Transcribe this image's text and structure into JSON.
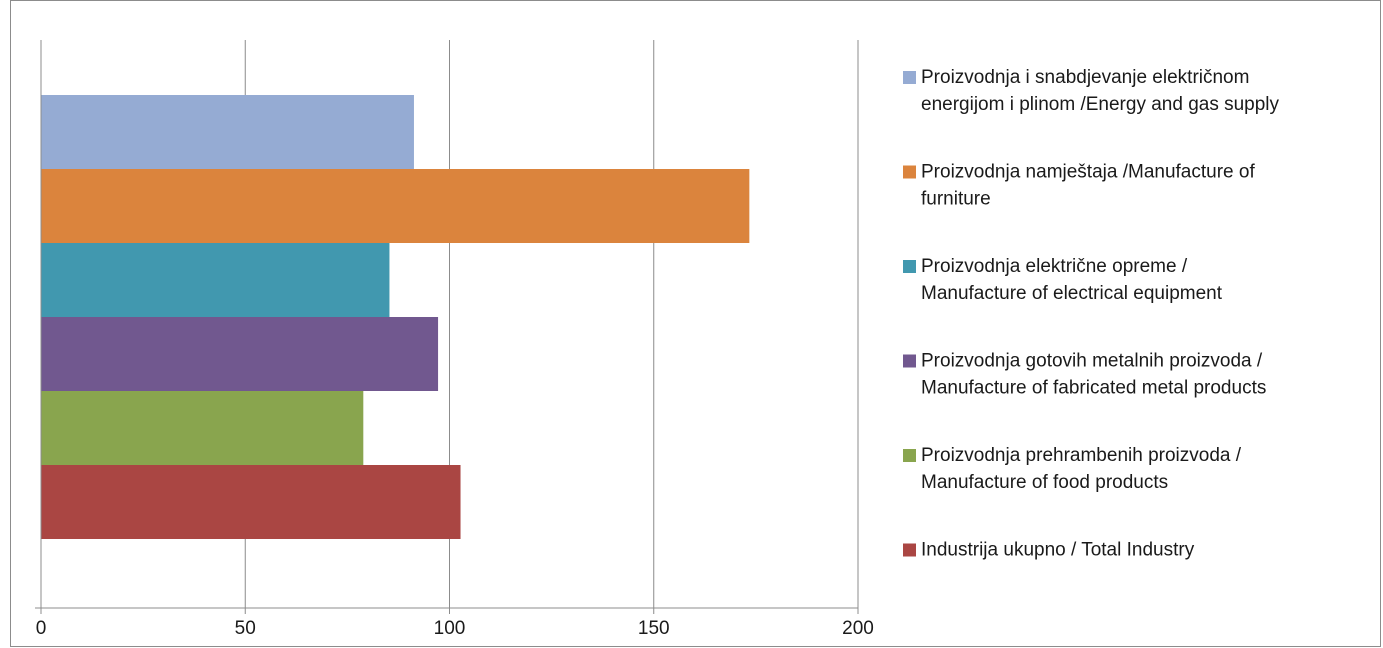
{
  "chart_data": {
    "type": "bar",
    "orientation": "horizontal",
    "title": "",
    "xlabel": "",
    "ylabel": "",
    "xlim": [
      0,
      200
    ],
    "x_ticks": [
      0,
      50,
      100,
      150,
      200
    ],
    "grid": "vertical",
    "legend_position": "right",
    "bars_top_to_bottom": [
      {
        "name_lines": [
          "Proizvodnja i snabdjevanje električnom",
          "energijom i plinom  /Energy and gas supply"
        ],
        "value": 91.3,
        "color": "#95ABD3"
      },
      {
        "name_lines": [
          "Proizvodnja namještaja /Manufacture of",
          "furniture"
        ],
        "value": 173.4,
        "color": "#DB843D"
      },
      {
        "name_lines": [
          "Proizvodnja električne opreme /",
          "Manufacture of electrical equipment"
        ],
        "value": 85.3,
        "color": "#4198AF"
      },
      {
        "name_lines": [
          "Proizvodnja gotovih metalnih proizvoda /",
          "Manufacture of fabricated metal products"
        ],
        "value": 97.2,
        "color": "#71588F"
      },
      {
        "name_lines": [
          "Proizvodnja prehrambenih proizvoda /",
          "Manufacture of food products"
        ],
        "value": 78.9,
        "color": "#89A54E"
      },
      {
        "name_lines": [
          "Industrija ukupno / Total Industry"
        ],
        "value": 102.7,
        "color": "#AA4643"
      }
    ]
  }
}
